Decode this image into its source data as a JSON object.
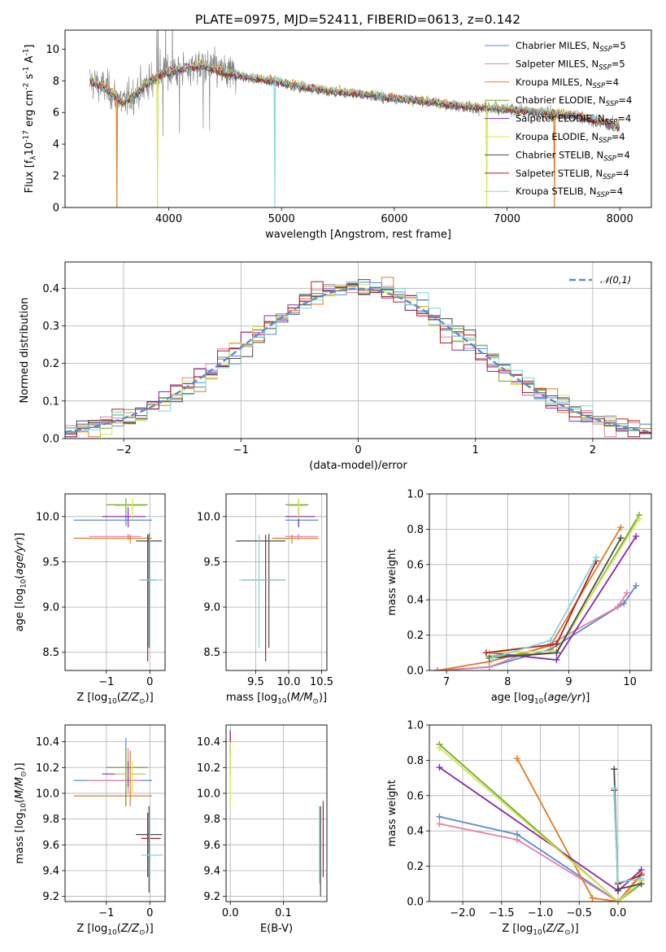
{
  "figure_title": "PLATE=0975, MJD=52411, FIBERID=0613, z=0.142",
  "colors": {
    "Chabrier MILES": "#5b8ad6",
    "Salpeter MILES": "#e57fa6",
    "Kroupa MILES": "#e07b22",
    "Chabrier ELODIE": "#6ea829",
    "Salpeter ELODIE": "#8a2aa8",
    "Kroupa ELODIE": "#d4e84a",
    "Chabrier STELIB": "#4b4b4b",
    "Salpeter STELIB": "#b41e1e",
    "Kroupa STELIB": "#7fd6dc",
    "data": "#808080",
    "normal": "#5b8ad6"
  },
  "chart_data": [
    {
      "type": "line",
      "panel": "spectrum",
      "title": "PLATE=0975, MJD=52411, FIBERID=0613, z=0.142",
      "xlabel": "wavelength [Angstrom, rest frame]",
      "ylabel": "Flux [f$_\\lambda$10$^{-17}$ erg cm$^{-2}$ s$^{-1}$ A$^{-1}$]",
      "xlim": [
        3080,
        8280
      ],
      "ylim": [
        0,
        11.2
      ],
      "xticks": [
        4000,
        5000,
        6000,
        7000,
        8000
      ],
      "yticks": [
        0,
        2,
        4,
        6,
        8,
        10
      ],
      "legend_position": "upper right",
      "legend": [
        {
          "name": "Chabrier MILES",
          "nssp": "5"
        },
        {
          "name": "Salpeter MILES",
          "nssp": "5"
        },
        {
          "name": "Kroupa MILES",
          "nssp": "4"
        },
        {
          "name": "Chabrier ELODIE",
          "nssp": "4"
        },
        {
          "name": "Salpeter ELODIE",
          "nssp": "4"
        },
        {
          "name": "Kroupa ELODIE",
          "nssp": "4"
        },
        {
          "name": "Chabrier STELIB",
          "nssp": "4"
        },
        {
          "name": "Salpeter STELIB",
          "nssp": "4"
        },
        {
          "name": "Kroupa STELIB",
          "nssp": "4"
        }
      ],
      "continuum": {
        "x": [
          3300,
          3450,
          3600,
          3800,
          3950,
          4100,
          4300,
          4500,
          4800,
          5000,
          5200,
          5500,
          5800,
          6000,
          6300,
          6600,
          6800,
          7000,
          7300,
          7600,
          7900,
          8000
        ],
        "y": [
          8.0,
          7.5,
          6.6,
          7.8,
          8.5,
          8.7,
          9.0,
          8.5,
          8.1,
          7.9,
          7.6,
          7.3,
          7.1,
          6.9,
          6.7,
          6.4,
          6.3,
          6.2,
          6.0,
          5.8,
          5.3,
          5.1
        ]
      },
      "model_dips": [
        {
          "series": "Kroupa MILES",
          "x": 3540,
          "y": 0
        },
        {
          "series": "Kroupa ELODIE",
          "x": 3900,
          "y": 0
        },
        {
          "series": "Kroupa STELIB",
          "x": 4940,
          "y": 0
        },
        {
          "series": "Kroupa ELODIE",
          "x": 6820,
          "y": 0
        },
        {
          "series": "Kroupa MILES",
          "x": 7420,
          "y": 0
        }
      ]
    },
    {
      "type": "histogram",
      "panel": "residuals",
      "xlabel": "(data-model)/error",
      "ylabel": "Normed distribution",
      "xlim": [
        -2.5,
        2.5
      ],
      "ylim": [
        0,
        0.47
      ],
      "xticks": [
        -2,
        -1,
        0,
        1,
        2
      ],
      "yticks": [
        0.0,
        0.1,
        0.2,
        0.3,
        0.4
      ],
      "legend_position": "upper right",
      "legend_label": "$\\mathcal{N}(0,1)$",
      "bin_width": 0.1
    },
    {
      "type": "errorbar",
      "panel": "age-vs-Z",
      "xlabel": "Z [log$_{10}$($Z/Z_\\odot$)]",
      "ylabel": "age  [log$_{10}$($age/yr$)]",
      "xlim": [
        -1.95,
        0.35
      ],
      "ylim": [
        8.3,
        10.25
      ],
      "xticks": [
        -1,
        0
      ],
      "yticks": [
        8.5,
        9.0,
        9.5,
        10.0
      ],
      "points": [
        {
          "series": "Chabrier MILES",
          "x": -0.55,
          "y": 9.96,
          "xerr": [
            1.2,
            0.6
          ],
          "yerr": [
            0.06,
            0.1
          ]
        },
        {
          "series": "Salpeter MILES",
          "x": -0.5,
          "y": 9.78,
          "xerr": [
            0.9,
            0.3
          ],
          "yerr": [
            0.04,
            0.03
          ]
        },
        {
          "series": "Kroupa MILES",
          "x": -0.45,
          "y": 9.76,
          "xerr": [
            1.3,
            0.5
          ],
          "yerr": [
            0.06,
            0.04
          ]
        },
        {
          "series": "Chabrier ELODIE",
          "x": -0.55,
          "y": 10.13,
          "xerr": [
            0.45,
            0.5
          ],
          "yerr": [
            0.08,
            0.07
          ]
        },
        {
          "series": "Salpeter ELODIE",
          "x": -0.5,
          "y": 10.0,
          "xerr": [
            0.6,
            0.4
          ],
          "yerr": [
            0.12,
            0.1
          ]
        },
        {
          "series": "Kroupa ELODIE",
          "x": -0.4,
          "y": 10.12,
          "xerr": [
            0.4,
            0.3
          ],
          "yerr": [
            0.15,
            0.08
          ]
        },
        {
          "series": "Chabrier STELIB",
          "x": -0.02,
          "y": 9.73,
          "xerr": [
            0.3,
            0.3
          ],
          "yerr": [
            1.18,
            0.08
          ]
        },
        {
          "series": "Salpeter STELIB",
          "x": -0.05,
          "y": 9.3,
          "xerr": [
            0.15,
            0.2
          ],
          "yerr": [
            0.9,
            0.5
          ]
        },
        {
          "series": "Kroupa STELIB",
          "x": 0.0,
          "y": 9.3,
          "xerr": [
            0.25,
            0.3
          ],
          "yerr": [
            0.75,
            0.5
          ]
        }
      ]
    },
    {
      "type": "errorbar",
      "panel": "age-vs-mass",
      "xlabel": "mass [log$_{10}$($M/M_\\odot$)]",
      "ylabel": "",
      "xlim": [
        9.05,
        10.58
      ],
      "ylim": [
        8.3,
        10.25
      ],
      "xticks": [
        9.5,
        10.0,
        10.5
      ],
      "yticks": [
        8.5,
        9.0,
        9.5,
        10.0
      ],
      "points": [
        {
          "series": "Chabrier MILES",
          "x": 10.15,
          "y": 9.96,
          "xerr": [
            0.2,
            0.3
          ],
          "yerr": [
            0.06,
            0.1
          ]
        },
        {
          "series": "Salpeter MILES",
          "x": 10.15,
          "y": 9.78,
          "xerr": [
            0.2,
            0.3
          ],
          "yerr": [
            0.04,
            0.03
          ]
        },
        {
          "series": "Kroupa MILES",
          "x": 10.05,
          "y": 9.76,
          "xerr": [
            0.3,
            0.4
          ],
          "yerr": [
            0.06,
            0.04
          ]
        },
        {
          "series": "Chabrier ELODIE",
          "x": 10.15,
          "y": 10.13,
          "xerr": [
            0.2,
            0.15
          ],
          "yerr": [
            0.08,
            0.07
          ]
        },
        {
          "series": "Salpeter ELODIE",
          "x": 10.15,
          "y": 10.0,
          "xerr": [
            0.2,
            0.25
          ],
          "yerr": [
            0.12,
            0.1
          ]
        },
        {
          "series": "Kroupa ELODIE",
          "x": 10.15,
          "y": 10.12,
          "xerr": [
            0.15,
            0.12
          ],
          "yerr": [
            0.15,
            0.08
          ]
        },
        {
          "series": "Chabrier STELIB",
          "x": 9.7,
          "y": 9.73,
          "xerr": [
            0.5,
            0.25
          ],
          "yerr": [
            1.18,
            0.08
          ]
        },
        {
          "series": "Salpeter STELIB",
          "x": 9.65,
          "y": 9.3,
          "xerr": [
            0.35,
            0.3
          ],
          "yerr": [
            0.9,
            0.5
          ]
        },
        {
          "series": "Kroupa STELIB",
          "x": 9.55,
          "y": 9.3,
          "xerr": [
            0.3,
            0.4
          ],
          "yerr": [
            0.75,
            0.5
          ]
        }
      ]
    },
    {
      "type": "line",
      "panel": "mass-weight-vs-age",
      "xlabel": "age  [log$_{10}$($age/yr$)]",
      "ylabel": "mass weight",
      "xlim": [
        6.72,
        10.35
      ],
      "ylim": [
        0,
        1.0
      ],
      "xticks": [
        7,
        8,
        9,
        10
      ],
      "yticks": [
        0.0,
        0.2,
        0.4,
        0.6,
        0.8,
        1.0
      ],
      "series": [
        {
          "name": "Chabrier MILES",
          "x": [
            6.85,
            7.7,
            8.7,
            9.9,
            10.1
          ],
          "y": [
            0.0,
            0.02,
            0.12,
            0.38,
            0.48
          ]
        },
        {
          "name": "Salpeter MILES",
          "x": [
            6.85,
            7.7,
            8.7,
            9.8,
            9.95
          ],
          "y": [
            0.0,
            0.02,
            0.15,
            0.36,
            0.44
          ]
        },
        {
          "name": "Kroupa MILES",
          "x": [
            6.85,
            7.7,
            8.7,
            9.85
          ],
          "y": [
            0.0,
            0.05,
            0.14,
            0.81
          ]
        },
        {
          "name": "Chabrier ELODIE",
          "x": [
            7.7,
            8.8,
            10.15
          ],
          "y": [
            0.08,
            0.1,
            0.88
          ]
        },
        {
          "name": "Salpeter ELODIE",
          "x": [
            7.7,
            8.8,
            10.1
          ],
          "y": [
            0.1,
            0.06,
            0.76
          ]
        },
        {
          "name": "Kroupa ELODIE",
          "x": [
            7.7,
            8.8,
            10.15
          ],
          "y": [
            0.1,
            0.11,
            0.86
          ]
        },
        {
          "name": "Chabrier STELIB",
          "x": [
            7.7,
            8.8,
            9.85
          ],
          "y": [
            0.07,
            0.1,
            0.75
          ]
        },
        {
          "name": "Salpeter STELIB",
          "x": [
            7.65,
            8.8,
            9.45
          ],
          "y": [
            0.1,
            0.15,
            0.62
          ]
        },
        {
          "name": "Kroupa STELIB",
          "x": [
            7.75,
            8.7,
            9.45
          ],
          "y": [
            0.07,
            0.17,
            0.64
          ]
        }
      ]
    },
    {
      "type": "errorbar",
      "panel": "mass-vs-Z",
      "xlabel": "Z [log$_{10}$($Z/Z_\\odot$)]",
      "ylabel": "mass [log$_{10}$($M/M_\\odot$)]",
      "xlim": [
        -1.95,
        0.35
      ],
      "ylim": [
        9.16,
        10.53
      ],
      "xticks": [
        -1,
        0
      ],
      "yticks": [
        9.2,
        9.4,
        9.6,
        9.8,
        10.0,
        10.2,
        10.4
      ],
      "points": [
        {
          "series": "Chabrier MILES",
          "x": -0.55,
          "y": 10.1,
          "xerr": [
            1.2,
            0.6
          ],
          "yerr": [
            0.2,
            0.33
          ]
        },
        {
          "series": "Salpeter MILES",
          "x": -0.5,
          "y": 10.1,
          "xerr": [
            0.9,
            0.3
          ],
          "yerr": [
            0.1,
            0.25
          ]
        },
        {
          "series": "Kroupa MILES",
          "x": -0.45,
          "y": 9.98,
          "xerr": [
            1.3,
            0.5
          ],
          "yerr": [
            0.08,
            0.35
          ]
        },
        {
          "series": "Chabrier ELODIE",
          "x": -0.55,
          "y": 10.2,
          "xerr": [
            0.45,
            0.5
          ],
          "yerr": [
            0.3,
            0.15
          ]
        },
        {
          "series": "Salpeter ELODIE",
          "x": -0.5,
          "y": 10.15,
          "xerr": [
            0.6,
            0.4
          ],
          "yerr": [
            0.1,
            0.1
          ]
        },
        {
          "series": "Kroupa ELODIE",
          "x": -0.4,
          "y": 10.15,
          "xerr": [
            0.4,
            0.3
          ],
          "yerr": [
            0.15,
            0.1
          ]
        },
        {
          "series": "Chabrier STELIB",
          "x": -0.02,
          "y": 9.68,
          "xerr": [
            0.3,
            0.3
          ],
          "yerr": [
            0.45,
            0.22
          ]
        },
        {
          "series": "Salpeter STELIB",
          "x": -0.05,
          "y": 9.65,
          "xerr": [
            0.15,
            0.3
          ],
          "yerr": [
            0.3,
            0.2
          ]
        },
        {
          "series": "Kroupa STELIB",
          "x": 0.0,
          "y": 9.52,
          "xerr": [
            0.2,
            0.3
          ],
          "yerr": [
            0.2,
            0.3
          ]
        }
      ]
    },
    {
      "type": "errorbar",
      "panel": "mass-vs-EBV",
      "xlabel": "E(B-V)",
      "ylabel": "",
      "xlim": [
        -0.008,
        0.182
      ],
      "ylim": [
        9.16,
        10.53
      ],
      "xticks": [
        0.0,
        0.1
      ],
      "yticks": [
        9.2,
        9.4,
        9.6,
        9.8,
        10.0,
        10.2,
        10.4
      ],
      "points": [
        {
          "series": "Chabrier MILES",
          "x": 0.0,
          "y": 10.45,
          "xerr": [
            0,
            0
          ],
          "yerr": [
            0.1,
            0.05
          ]
        },
        {
          "series": "Salpeter MILES",
          "x": 0.0,
          "y": 10.43,
          "xerr": [
            0,
            0
          ],
          "yerr": [
            0.08,
            0.05
          ]
        },
        {
          "series": "Kroupa MILES",
          "x": 0.0,
          "y": 10.42,
          "xerr": [
            0,
            0
          ],
          "yerr": [
            0.1,
            0.06
          ]
        },
        {
          "series": "Chabrier ELODIE",
          "x": 0.0,
          "y": 10.35,
          "xerr": [
            0,
            0
          ],
          "yerr": [
            0.2,
            0.1
          ]
        },
        {
          "series": "Salpeter ELODIE",
          "x": 0.0,
          "y": 10.42,
          "xerr": [
            0,
            0
          ],
          "yerr": [
            0.12,
            0.06
          ]
        },
        {
          "series": "Kroupa ELODIE",
          "x": 0.0,
          "y": 10.2,
          "xerr": [
            0,
            0
          ],
          "yerr": [
            0.3,
            0.2
          ]
        },
        {
          "series": "Chabrier STELIB",
          "x": 0.17,
          "y": 9.6,
          "xerr": [
            0,
            0
          ],
          "yerr": [
            0.4,
            0.3
          ]
        },
        {
          "series": "Salpeter STELIB",
          "x": 0.175,
          "y": 9.65,
          "xerr": [
            0,
            0
          ],
          "yerr": [
            0.3,
            0.29
          ]
        },
        {
          "series": "Kroupa STELIB",
          "x": 0.168,
          "y": 9.55,
          "xerr": [
            0,
            0
          ],
          "yerr": [
            0.25,
            0.35
          ]
        }
      ]
    },
    {
      "type": "line",
      "panel": "mass-weight-vs-Z",
      "xlabel": "Z [log$_{10}$($Z/Z_\\odot$)]",
      "ylabel": "mass weight",
      "xlim": [
        -2.43,
        0.43
      ],
      "ylim": [
        0,
        1.0
      ],
      "xticks": [
        -2.0,
        -1.5,
        -1.0,
        -0.5,
        0.0
      ],
      "yticks": [
        0.0,
        0.2,
        0.4,
        0.6,
        0.8,
        1.0
      ],
      "series": [
        {
          "name": "Chabrier MILES",
          "x": [
            -2.3,
            -1.3,
            0.0,
            0.3
          ],
          "y": [
            0.48,
            0.38,
            0.0,
            0.12
          ]
        },
        {
          "name": "Salpeter MILES",
          "x": [
            -2.3,
            -1.3,
            0.0,
            0.3
          ],
          "y": [
            0.44,
            0.35,
            0.0,
            0.16
          ]
        },
        {
          "name": "Kroupa MILES",
          "x": [
            -1.3,
            -0.33,
            0.0,
            0.3
          ],
          "y": [
            0.81,
            0.02,
            0.0,
            0.15
          ]
        },
        {
          "name": "Chabrier ELODIE",
          "x": [
            -2.3,
            0.0,
            0.3
          ],
          "y": [
            0.89,
            0.0,
            0.1
          ]
        },
        {
          "name": "Salpeter ELODIE",
          "x": [
            -2.3,
            0.0,
            0.3
          ],
          "y": [
            0.76,
            0.06,
            0.18
          ]
        },
        {
          "name": "Kroupa ELODIE",
          "x": [
            -2.3,
            0.0,
            0.3
          ],
          "y": [
            0.87,
            0.0,
            0.12
          ]
        },
        {
          "name": "Chabrier STELIB",
          "x": [
            -0.05,
            0.0,
            0.3
          ],
          "y": [
            0.75,
            0.07,
            0.1
          ]
        },
        {
          "name": "Salpeter STELIB",
          "x": [
            -0.05,
            0.0,
            0.3
          ],
          "y": [
            0.63,
            0.1,
            0.15
          ]
        },
        {
          "name": "Kroupa STELIB",
          "x": [
            -0.05,
            0.0,
            0.3
          ],
          "y": [
            0.64,
            0.11,
            0.13
          ]
        }
      ]
    }
  ]
}
